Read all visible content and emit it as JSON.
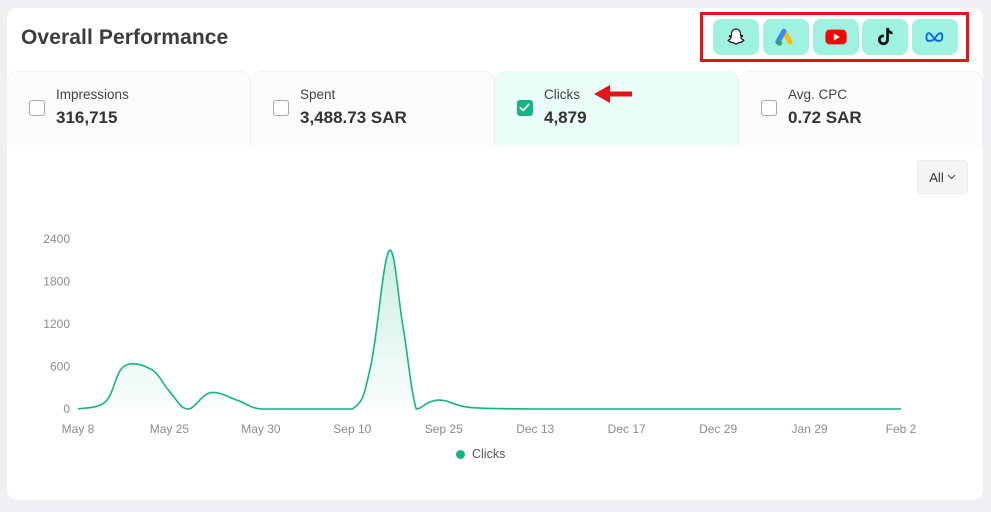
{
  "header": {
    "title": "Overall Performance"
  },
  "platforms": [
    {
      "name": "snapchat-icon"
    },
    {
      "name": "google-ads-icon"
    },
    {
      "name": "youtube-icon"
    },
    {
      "name": "tiktok-icon"
    },
    {
      "name": "meta-icon"
    }
  ],
  "metrics": [
    {
      "label": "Impressions",
      "value": "316,715",
      "checked": false
    },
    {
      "label": "Spent",
      "value": "3,488.73 SAR",
      "checked": false
    },
    {
      "label": "Clicks",
      "value": "4,879",
      "checked": true
    },
    {
      "label": "Avg. CPC",
      "value": "0.72 SAR",
      "checked": false
    }
  ],
  "range_select": {
    "value": "All"
  },
  "colors": {
    "accent": "#15b483",
    "platform_bg": "#9ef2df",
    "highlight": "#e3141c"
  },
  "chart_data": {
    "type": "area",
    "x_ticks": [
      "May 8",
      "May 25",
      "May 30",
      "Sep 10",
      "Sep 25",
      "Dec 13",
      "Dec 17",
      "Dec 29",
      "Jan 29",
      "Feb 2"
    ],
    "y_ticks": [
      0,
      600,
      1200,
      1800,
      2400
    ],
    "ylim": [
      0,
      2400
    ],
    "series": [
      {
        "name": "Clicks",
        "points": [
          [
            0,
            0
          ],
          [
            0.3,
            100
          ],
          [
            0.5,
            600
          ],
          [
            0.8,
            560
          ],
          [
            1.0,
            250
          ],
          [
            1.2,
            0
          ],
          [
            1.45,
            230
          ],
          [
            1.75,
            120
          ],
          [
            2.0,
            0
          ],
          [
            2.5,
            0
          ],
          [
            3.0,
            0
          ],
          [
            3.2,
            600
          ],
          [
            3.4,
            2230
          ],
          [
            3.55,
            1200
          ],
          [
            3.7,
            0
          ],
          [
            3.85,
            100
          ],
          [
            4.0,
            120
          ],
          [
            4.3,
            20
          ],
          [
            5.0,
            0
          ],
          [
            6.0,
            0
          ],
          [
            7.0,
            0
          ],
          [
            8.0,
            0
          ],
          [
            9.0,
            0
          ]
        ]
      }
    ],
    "legend": [
      "Clicks"
    ],
    "legend_position": "bottom"
  }
}
